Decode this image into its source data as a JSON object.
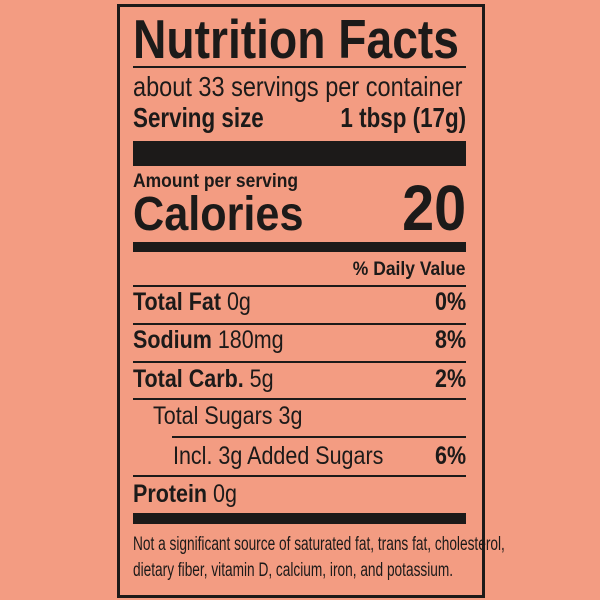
{
  "title": "Nutrition Facts",
  "servings": "about 33 servings per container",
  "serving_size": {
    "label": "Serving size",
    "value": "1 tbsp (17g)"
  },
  "amount_per_serving": "Amount per serving",
  "calories": {
    "label": "Calories",
    "value": "20"
  },
  "daily_value_header": "% Daily Value",
  "nutrients": [
    {
      "name": "Total Fat",
      "amount": "0g",
      "dv": "0%"
    },
    {
      "name": "Sodium",
      "amount": "180mg",
      "dv": "8%"
    },
    {
      "name": "Total Carb.",
      "amount": "5g",
      "dv": "2%"
    },
    {
      "name": "Total Sugars 3g",
      "amount": "",
      "dv": ""
    },
    {
      "name": "Incl. 3g Added Sugars",
      "amount": "",
      "dv": "6%"
    },
    {
      "name": "Protein",
      "amount": "0g",
      "dv": ""
    }
  ],
  "footnote": [
    "Not a significant source of saturated fat, trans fat, cholesterol,",
    "dietary fiber, vitamin D, calcium, iron, and potassium."
  ],
  "colors": {
    "background": "#f39c82",
    "ink": "#1c1a19"
  }
}
